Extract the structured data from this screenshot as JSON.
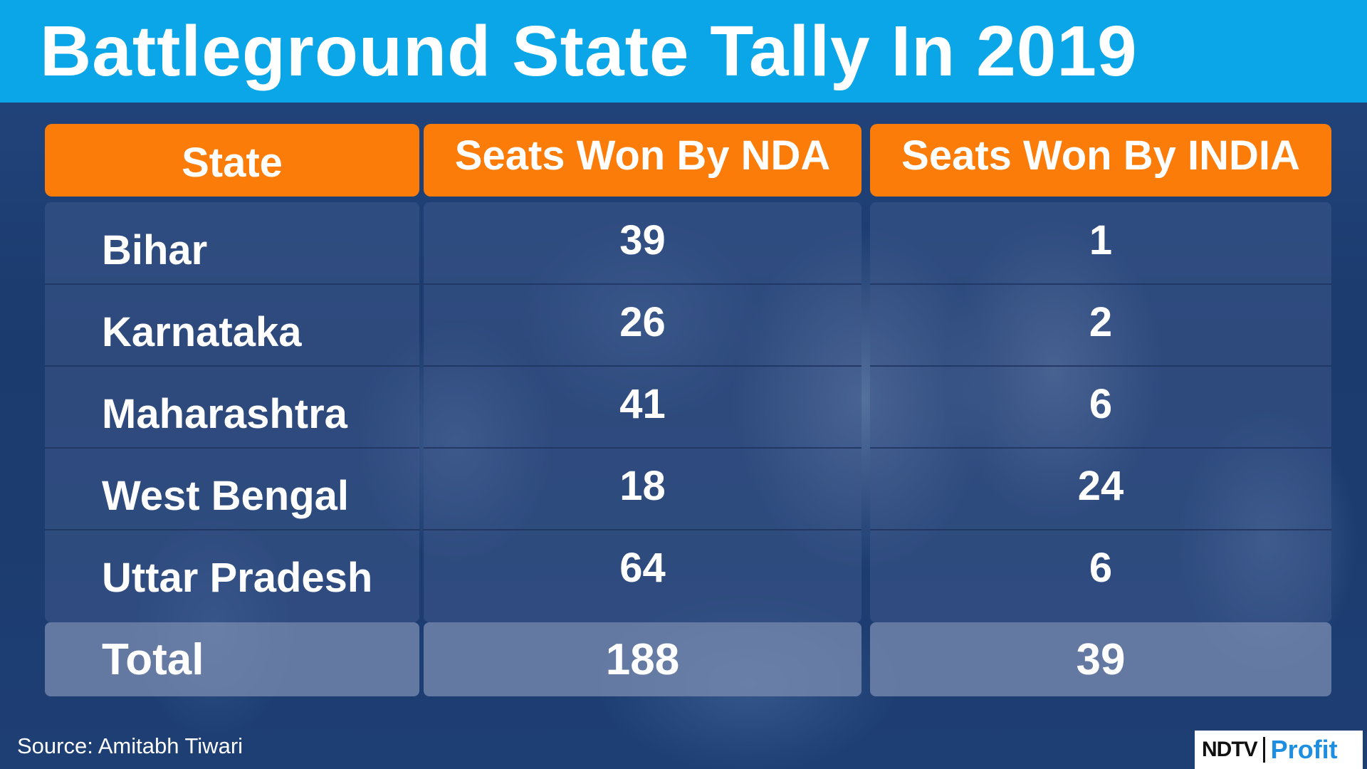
{
  "title": "Battleground State Tally In 2019",
  "colors": {
    "header_bar": "#0aa6e8",
    "table_header": "#fb7c09",
    "background": "#1d3e73",
    "text": "#ffffff",
    "logo_profit": "#1e8fe0"
  },
  "source": "Source: Amitabh Tiwari",
  "logo": {
    "ndtv": "NDTV",
    "profit": "Profit"
  },
  "chart_data": {
    "type": "table",
    "title": "Battleground State Tally In 2019",
    "columns": [
      "State",
      "Seats Won By NDA",
      "Seats Won By INDIA"
    ],
    "rows": [
      [
        "Bihar",
        "39",
        "1"
      ],
      [
        "Karnataka",
        "26",
        "2"
      ],
      [
        "Maharashtra",
        "41",
        "6"
      ],
      [
        "West Bengal",
        "18",
        "24"
      ],
      [
        "Uttar Pradesh",
        "64",
        "6"
      ]
    ],
    "total": [
      "Total",
      "188",
      "39"
    ]
  }
}
